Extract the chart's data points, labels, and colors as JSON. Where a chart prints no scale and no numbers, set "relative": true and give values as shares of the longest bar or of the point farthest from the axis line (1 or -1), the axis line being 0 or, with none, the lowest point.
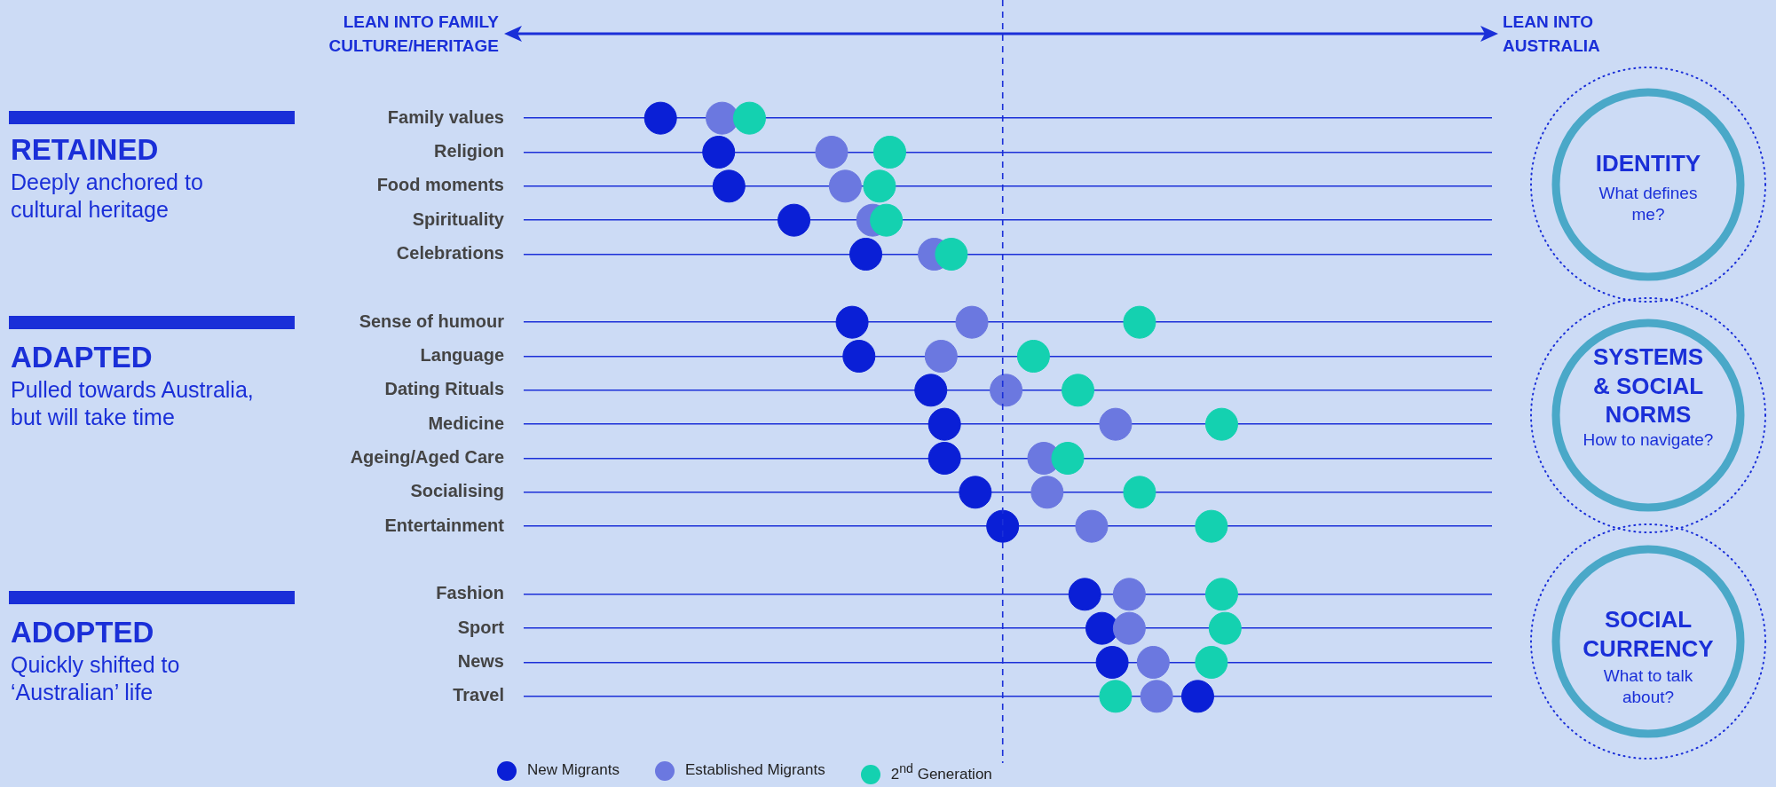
{
  "chart_data": {
    "type": "scatter",
    "orientation": "horizontal",
    "relative": true,
    "marker": "circle",
    "grid": "y",
    "legend": "bottom",
    "categories": [
      "Family values",
      "Religion",
      "Food moments",
      "Spirituality",
      "Celebrations",
      null,
      "Sense of humour",
      "Language",
      "Dating Rituals",
      "Medicine",
      "Ageing/Aged Care",
      "Socialising",
      "Entertainment",
      null,
      "Fashion",
      "Sport",
      "News",
      "Travel"
    ],
    "series": [
      {
        "name": "New Migrants",
        "color": "#0a1fd6",
        "values": [
          -1,
          -0.83,
          -0.8,
          -0.61,
          -0.4,
          null,
          -0.44,
          -0.42,
          -0.21,
          -0.17,
          -0.17,
          -0.08,
          0,
          null,
          0.24,
          0.29,
          0.32,
          0.57
        ]
      },
      {
        "name": "Established Migrants",
        "color": "#6b78e0",
        "values": [
          -0.82,
          -0.5,
          -0.46,
          -0.38,
          -0.2,
          null,
          -0.09,
          -0.18,
          0.01,
          0.33,
          0.12,
          0.13,
          0.26,
          null,
          0.37,
          0.37,
          0.44,
          0.45
        ]
      },
      {
        "name": "2$^{nd}$ Generation",
        "color": "#14d1b0",
        "values": [
          -0.74,
          -0.33,
          -0.36,
          -0.34,
          -0.15,
          null,
          0.4,
          0.09,
          0.22,
          0.64,
          0.19,
          0.4,
          0.61,
          null,
          0.64,
          0.65,
          0.61,
          0.33
        ]
      }
    ],
    "ref_lines": [
      {
        "axis": "x",
        "value": 0,
        "line_style": "dashed",
        "color": "#1a2fd8"
      }
    ],
    "annotations": [
      "LEAN INTO FAMILY CULTURE/HERITAGE",
      "LEAN INTO AUSTRALIA",
      "RETAINED",
      "Deeply anchored to cultural heritage",
      "ADAPTED",
      "Pulled towards Australia, but will take time",
      "ADOPTED",
      "Quickly shifted to ‘Australian’ life",
      "IDENTITY",
      "What defines me?",
      "SYSTEMS & SOCIAL NORMS",
      "How to navigate?",
      "SOCIAL CURRENCY",
      "What to talk about?"
    ]
  }
}
